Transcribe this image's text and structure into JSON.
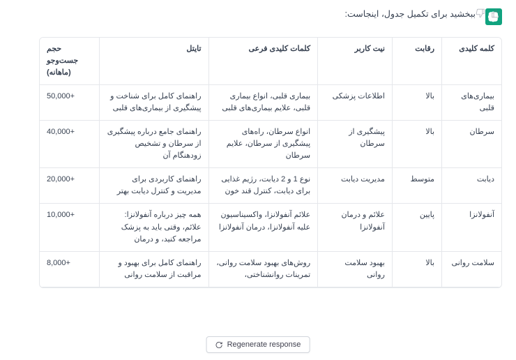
{
  "intro": "ببخشید برای تکمیل جدول، اینجاست:",
  "feedback": {
    "up": "thumbs-up",
    "down": "thumbs-down"
  },
  "table": {
    "headers": {
      "keyword": "کلمه کلیدی",
      "competition": "رقابت",
      "intent": "نیت کاربر",
      "subkeywords": "کلمات کلیدی فرعی",
      "title": "تایتل",
      "volume": "حجم جست‌وجو (ماهانه)"
    },
    "rows": [
      {
        "keyword": "بیماری‌های قلبی",
        "competition": "بالا",
        "intent": "اطلاعات پزشکی",
        "subkeywords": "بیماری قلبی، انواع بیماری قلبی، علایم بیماری‌های قلبی",
        "title": "راهنمای کامل برای شناخت و پیشگیری از بیماری‌های قلبی",
        "volume": "50,000+"
      },
      {
        "keyword": "سرطان",
        "competition": "بالا",
        "intent": "پیشگیری از سرطان",
        "subkeywords": "انواع سرطان، راه‌های پیشگیری از سرطان، علایم سرطان",
        "title": "راهنمای جامع درباره پیشگیری از سرطان و تشخیص زودهنگام آن",
        "volume": "40,000+"
      },
      {
        "keyword": "دیابت",
        "competition": "متوسط",
        "intent": "مدیریت دیابت",
        "subkeywords": "نوع 1 و 2 دیابت، رژیم غذایی برای دیابت، کنترل قند خون",
        "title": "راهنمای کاربردی برای مدیریت و کنترل دیابت بهتر",
        "volume": "20,000+"
      },
      {
        "keyword": "آنفولانزا",
        "competition": "پایین",
        "intent": "علائم و درمان آنفولانزا",
        "subkeywords": "علائم آنفولانزا، واکسیناسیون علیه آنفولانزا، درمان آنفولانزا",
        "title": "همه چیز درباره آنفولانزا: علائم، وقتی باید به پزشک مراجعه کنید، و درمان",
        "volume": "10,000+"
      },
      {
        "keyword": "سلامت روانی",
        "competition": "بالا",
        "intent": "بهبود سلامت روانی",
        "subkeywords": "روش‌های بهبود سلامت روانی، تمرینات روانشناختی،",
        "title": "راهنمای کامل برای بهبود و مراقبت از سلامت روانی",
        "volume": "8,000+"
      }
    ]
  },
  "regenerate": "Regenerate response",
  "colors": {
    "accent": "#10a37f",
    "border": "#e5e7eb",
    "text": "#374151"
  }
}
